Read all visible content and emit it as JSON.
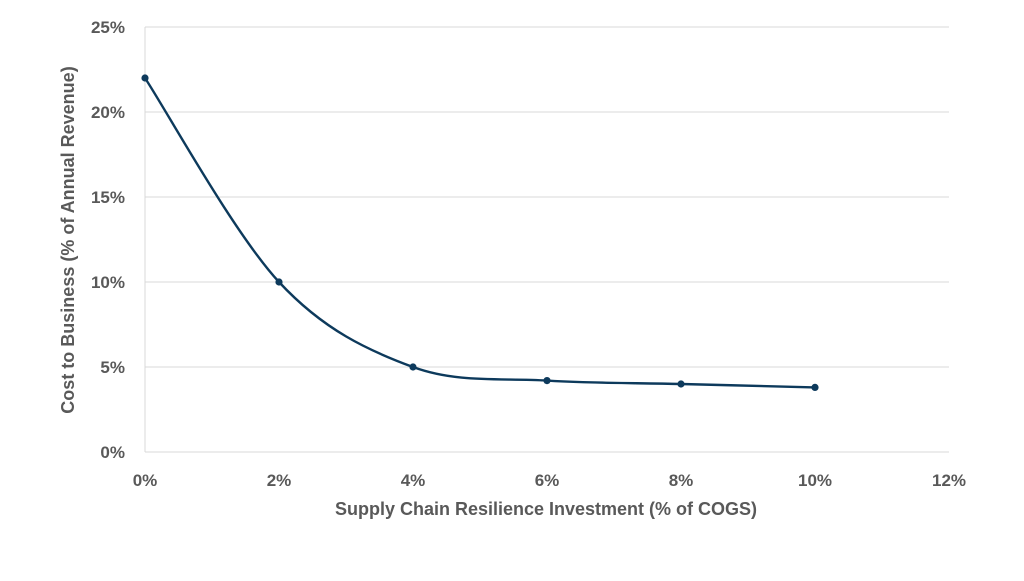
{
  "chart_data": {
    "type": "line",
    "title": "",
    "xlabel": "Supply Chain Resilience Investment (% of COGS)",
    "ylabel": "Cost to Business (% of Annual Revenue)",
    "xlim": [
      0,
      12
    ],
    "ylim": [
      0,
      25
    ],
    "x_ticks": [
      0,
      2,
      4,
      6,
      8,
      10,
      12
    ],
    "y_ticks": [
      0,
      5,
      10,
      15,
      20,
      25
    ],
    "x_tick_labels": [
      "0%",
      "2%",
      "4%",
      "6%",
      "8%",
      "10%",
      "12%"
    ],
    "y_tick_labels": [
      "0%",
      "5%",
      "10%",
      "15%",
      "20%",
      "25%"
    ],
    "grid": true,
    "smoothed": true,
    "series": [
      {
        "name": "Cost to Business",
        "color": "#0d3a5c",
        "x": [
          0,
          2,
          4,
          6,
          8,
          10
        ],
        "values": [
          22,
          10,
          5,
          4.2,
          4,
          3.8
        ]
      }
    ]
  }
}
